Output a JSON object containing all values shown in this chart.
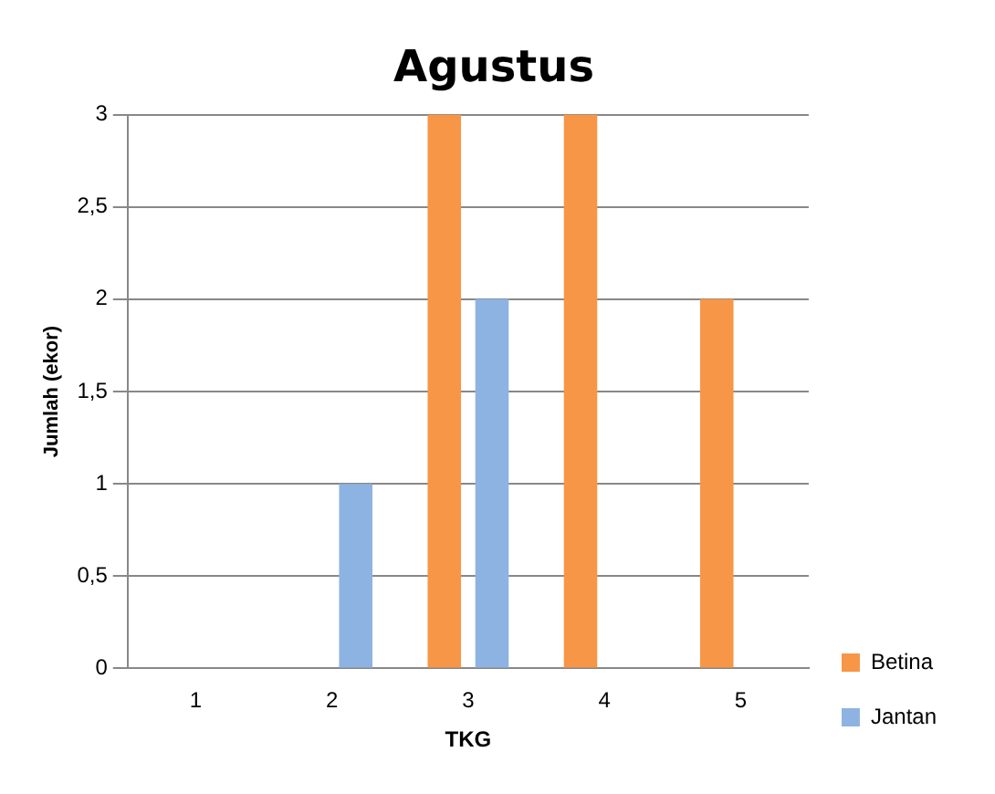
{
  "chart_data": {
    "type": "bar",
    "title": "Agustus",
    "xlabel": "TKG",
    "ylabel": "Jumlah (ekor)",
    "categories": [
      "1",
      "2",
      "3",
      "4",
      "5"
    ],
    "series": [
      {
        "name": "Betina",
        "color": "#f79646",
        "values": [
          0,
          0,
          3,
          3,
          2
        ]
      },
      {
        "name": "Jantan",
        "color": "#8db3e2",
        "values": [
          0,
          1,
          2,
          0,
          0
        ]
      }
    ],
    "ylim": [
      0,
      3
    ],
    "yticks": [
      0,
      {
        "value": 0.5,
        "label": "0,5"
      },
      1,
      {
        "value": 1.5,
        "label": "1,5"
      },
      2,
      {
        "value": 2.5,
        "label": "2,5"
      },
      3
    ],
    "grid": "y",
    "legend": "right"
  }
}
